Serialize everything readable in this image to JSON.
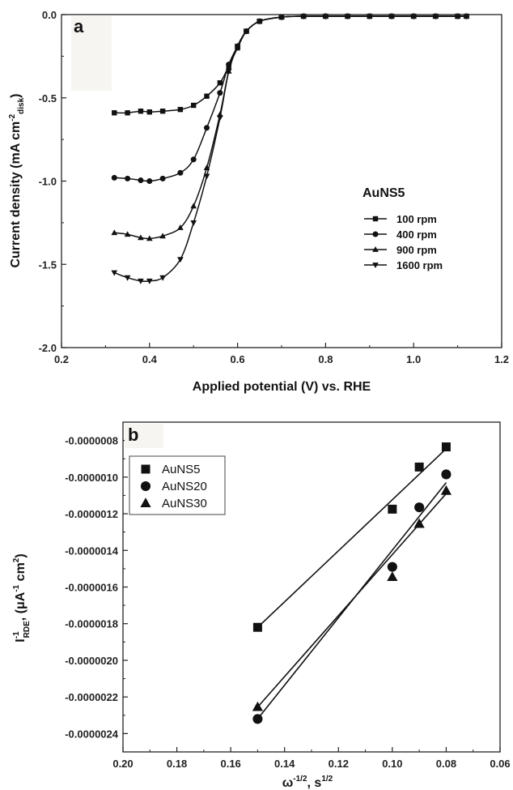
{
  "chart_data": [
    {
      "type": "line",
      "panel_label": "a",
      "xlabel": "Applied potential (V) vs. RHE",
      "ylabel_main": "Current density (mA cm",
      "ylabel_sup": "-2",
      "ylabel_sub": "disk",
      "ylabel_end": ")",
      "xlim": [
        0.2,
        1.2
      ],
      "ylim": [
        -2.0,
        0.0
      ],
      "xticks": [
        "0.2",
        "0.4",
        "0.6",
        "0.8",
        "1.0",
        "1.2"
      ],
      "yticks": [
        "0.0",
        "-0.5",
        "-1.0",
        "-1.5",
        "-2.0"
      ],
      "legend_title": "AuNS5",
      "legend_position": "center-right",
      "series": [
        {
          "name": "100 rpm",
          "marker": "square",
          "x": [
            0.32,
            0.35,
            0.38,
            0.4,
            0.43,
            0.47,
            0.5,
            0.53,
            0.56,
            0.58,
            0.6,
            0.62,
            0.65,
            0.7,
            0.75,
            0.8,
            0.85,
            0.9,
            0.95,
            1.0,
            1.05,
            1.1,
            1.12
          ],
          "y": [
            -0.59,
            -0.59,
            -0.58,
            -0.585,
            -0.58,
            -0.57,
            -0.545,
            -0.49,
            -0.41,
            -0.31,
            -0.2,
            -0.1,
            -0.04,
            -0.015,
            -0.01,
            -0.01,
            -0.01,
            -0.01,
            -0.01,
            -0.01,
            -0.01,
            -0.01,
            -0.01
          ]
        },
        {
          "name": "400 rpm",
          "marker": "circle",
          "x": [
            0.32,
            0.35,
            0.38,
            0.4,
            0.43,
            0.47,
            0.5,
            0.53,
            0.56,
            0.58,
            0.6,
            0.62,
            0.65,
            0.7,
            0.75,
            0.8,
            0.85,
            0.9,
            0.95,
            1.0,
            1.05,
            1.1,
            1.12
          ],
          "y": [
            -0.98,
            -0.985,
            -0.995,
            -1.0,
            -0.985,
            -0.95,
            -0.87,
            -0.68,
            -0.47,
            -0.3,
            -0.19,
            -0.1,
            -0.04,
            -0.015,
            -0.01,
            -0.01,
            -0.01,
            -0.01,
            -0.01,
            -0.01,
            -0.01,
            -0.01,
            -0.01
          ]
        },
        {
          "name": "900 rpm",
          "marker": "triangle-up",
          "x": [
            0.32,
            0.35,
            0.38,
            0.4,
            0.43,
            0.47,
            0.5,
            0.53,
            0.56,
            0.58,
            0.6,
            0.62,
            0.65,
            0.7,
            0.75,
            0.8,
            0.85,
            0.9,
            0.95,
            1.0,
            1.05,
            1.1,
            1.12
          ],
          "y": [
            -1.31,
            -1.32,
            -1.34,
            -1.345,
            -1.33,
            -1.28,
            -1.15,
            -0.92,
            -0.6,
            -0.34,
            -0.19,
            -0.1,
            -0.04,
            -0.015,
            -0.01,
            -0.01,
            -0.01,
            -0.01,
            -0.01,
            -0.01,
            -0.01,
            -0.01,
            -0.01
          ]
        },
        {
          "name": "1600 rpm",
          "marker": "triangle-down",
          "x": [
            0.32,
            0.35,
            0.38,
            0.4,
            0.43,
            0.47,
            0.5,
            0.53,
            0.56,
            0.58,
            0.6,
            0.62,
            0.65,
            0.7,
            0.75,
            0.8,
            0.85,
            0.9,
            0.95,
            1.0,
            1.05,
            1.1,
            1.12
          ],
          "y": [
            -1.55,
            -1.58,
            -1.6,
            -1.6,
            -1.58,
            -1.47,
            -1.25,
            -0.97,
            -0.62,
            -0.34,
            -0.19,
            -0.1,
            -0.04,
            -0.015,
            -0.01,
            -0.01,
            -0.01,
            -0.01,
            -0.01,
            -0.01,
            -0.01,
            -0.01,
            -0.01
          ]
        }
      ]
    },
    {
      "type": "scatter",
      "panel_label": "b",
      "xlabel_omega": "ω",
      "xlabel_omega_sup": "-1/2",
      "xlabel_mid": ", s",
      "xlabel_s_sup": "1/2",
      "ylabel_main": "I",
      "ylabel_sup": "-1",
      "ylabel_sub": "RDE",
      "ylabel_rest": ", (μA",
      "ylabel_sup2": "-1",
      "ylabel_rest2": " cm",
      "ylabel_sup3": "2",
      "ylabel_end": ")",
      "x_reversed": true,
      "xlim": [
        0.2,
        0.06
      ],
      "ylim": [
        -2.5e-06,
        -7e-07
      ],
      "xticks": [
        "0.20",
        "0.18",
        "0.16",
        "0.14",
        "0.12",
        "0.10",
        "0.08",
        "0.06"
      ],
      "yticks": [
        "-0.0000008",
        "-0.0000010",
        "-0.0000012",
        "-0.0000014",
        "-0.0000016",
        "-0.0000018",
        "-0.0000020",
        "-0.0000022",
        "-0.0000024"
      ],
      "legend_position": "top-left",
      "series": [
        {
          "name": "AuNS5",
          "marker": "square",
          "x": [
            0.15,
            0.1,
            0.09,
            0.08
          ],
          "y": [
            -1.82e-06,
            -1.175e-06,
            -9.45e-07,
            -8.35e-07
          ],
          "fit": {
            "x": [
              0.15,
              0.08
            ],
            "y": [
              -1.82e-06,
              -8.45e-07
            ]
          }
        },
        {
          "name": "AuNS20",
          "marker": "circle",
          "x": [
            0.15,
            0.1,
            0.09,
            0.08
          ],
          "y": [
            -2.32e-06,
            -1.49e-06,
            -1.165e-06,
            -9.85e-07
          ],
          "fit": {
            "x": [
              0.15,
              0.08
            ],
            "y": [
              -2.32e-06,
              -1.03e-06
            ]
          }
        },
        {
          "name": "AuNS30",
          "marker": "triangle-up",
          "x": [
            0.15,
            0.1,
            0.09,
            0.08
          ],
          "y": [
            -2.255e-06,
            -1.545e-06,
            -1.255e-06,
            -1.075e-06
          ],
          "fit": {
            "x": [
              0.15,
              0.08
            ],
            "y": [
              -2.255e-06,
              -1.09e-06
            ]
          }
        }
      ]
    }
  ]
}
